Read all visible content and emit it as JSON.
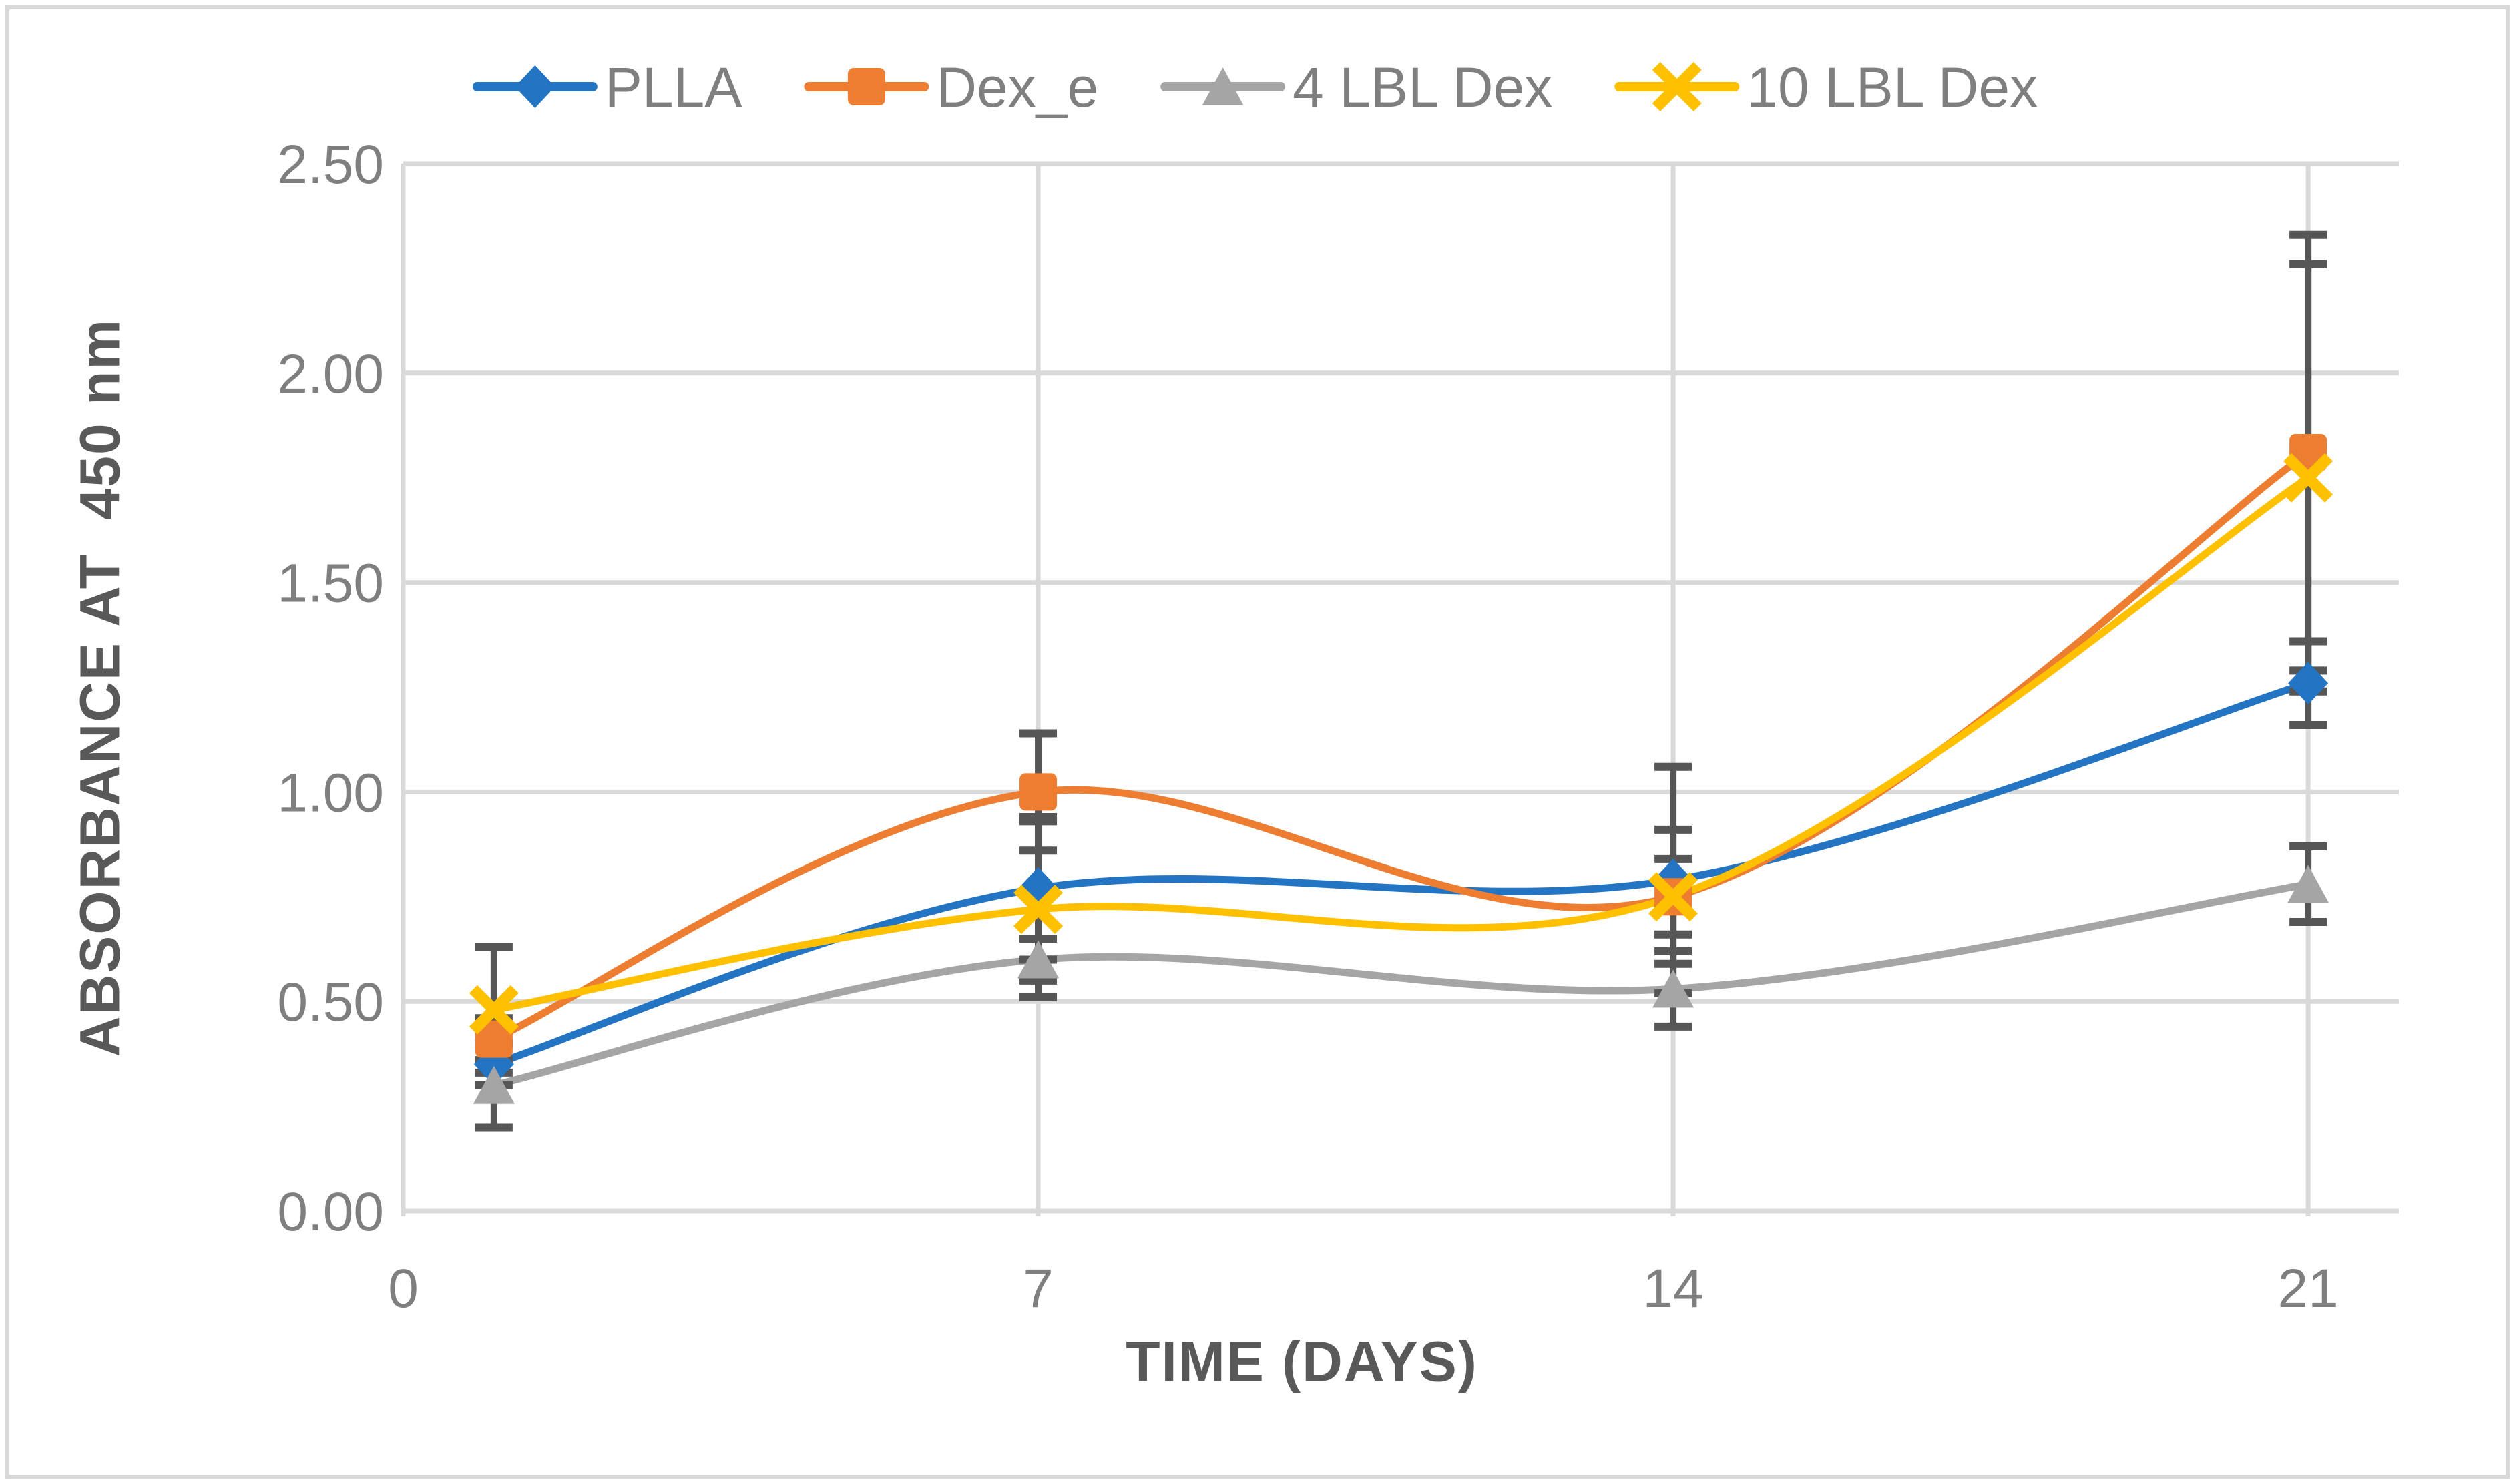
{
  "frame": {
    "border_color": "#D9D9D9",
    "background": "#FFFFFF"
  },
  "chart_data": {
    "type": "line",
    "title": "",
    "xlabel": "TIME (DAYS)",
    "ylabel": "ABSORBANCE AT  450 nm",
    "x": [
      1,
      7,
      14,
      21
    ],
    "x_tick_values": [
      0,
      7,
      14,
      21
    ],
    "x_tick_labels": [
      "0",
      "7",
      "14",
      "21"
    ],
    "xlim": [
      0,
      22
    ],
    "y_tick_values": [
      0,
      0.5,
      1.0,
      1.5,
      2.0,
      2.5
    ],
    "y_tick_labels": [
      "0.00",
      "0.50",
      "1.00",
      "1.50",
      "2.00",
      "2.50"
    ],
    "ylim": [
      0,
      2.5
    ],
    "grid": true,
    "smooth_lines": true,
    "legend_position": "top-center",
    "series": [
      {
        "name": "PLLA",
        "color": "#2474C4",
        "marker": "diamond",
        "values": [
          0.35,
          0.77,
          0.79,
          1.26
        ],
        "errors": [
          0.05,
          0.17,
          0.27,
          0.1
        ]
      },
      {
        "name": "Dex_e",
        "color": "#ED7D31",
        "marker": "square",
        "values": [
          0.41,
          1.0,
          0.75,
          1.81
        ],
        "errors": [
          0.05,
          0.14,
          0.16,
          0.52
        ]
      },
      {
        "name": "4 LBL Dex",
        "color": "#A5A5A5",
        "marker": "triangle",
        "values": [
          0.3,
          0.6,
          0.53,
          0.78
        ],
        "errors": [
          0.1,
          0.05,
          0.09,
          0.09
        ]
      },
      {
        "name": "10 LBL Dex",
        "color": "#FFC000",
        "marker": "x",
        "values": [
          0.48,
          0.72,
          0.75,
          1.75
        ],
        "errors": [
          0.15,
          0.21,
          0.09,
          0.51
        ]
      }
    ],
    "error_bar_color": "#565656",
    "gridline_color": "#D9D9D9",
    "tick_label_color": "#7F7F7F",
    "axis_title_color": "#595959"
  }
}
